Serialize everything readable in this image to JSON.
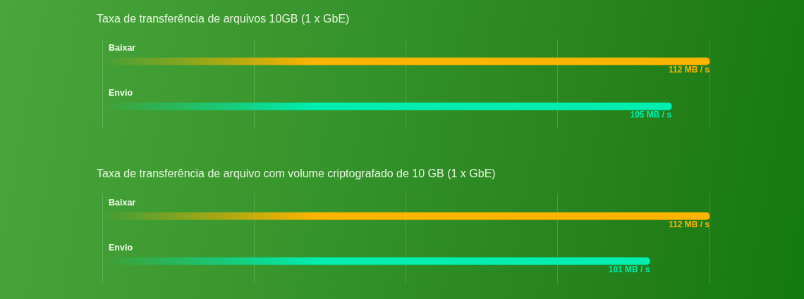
{
  "chart_data": [
    {
      "type": "bar",
      "orientation": "horizontal",
      "title": "Taxa de transferência de arquivos 10GB (1 x GbE)",
      "categories": [
        "Baixar",
        "Envio"
      ],
      "values": [
        112,
        105
      ],
      "colors": [
        "#ffb400",
        "#00eeb0"
      ],
      "value_labels": [
        "112 MB / s",
        "105 MB / s"
      ],
      "xlim": [
        0,
        112
      ],
      "xticks": [
        {
          "value": 0,
          "label": null
        },
        {
          "value": 28,
          "label": null
        },
        {
          "value": 56,
          "label": null
        },
        {
          "value": 84,
          "label": null
        },
        {
          "value": 112,
          "label": null
        }
      ],
      "grid": "x",
      "tick_labels": "y"
    },
    {
      "type": "bar",
      "orientation": "horizontal",
      "title": "Taxa de transferência de arquivo com volume criptografado de 10 GB (1 x GbE)",
      "categories": [
        "Baixar",
        "Envio"
      ],
      "values": [
        112,
        101
      ],
      "colors": [
        "#ffb400",
        "#00eeb0"
      ],
      "value_labels": [
        "112 MB / s",
        "101 MB / s"
      ],
      "xlim": [
        0,
        112
      ],
      "xticks": [
        {
          "value": 0,
          "label": null
        },
        {
          "value": 28,
          "label": null
        },
        {
          "value": 56,
          "label": null
        },
        {
          "value": 84,
          "label": null
        },
        {
          "value": 112,
          "label": null
        }
      ],
      "grid": "x",
      "tick_labels": "y"
    }
  ]
}
